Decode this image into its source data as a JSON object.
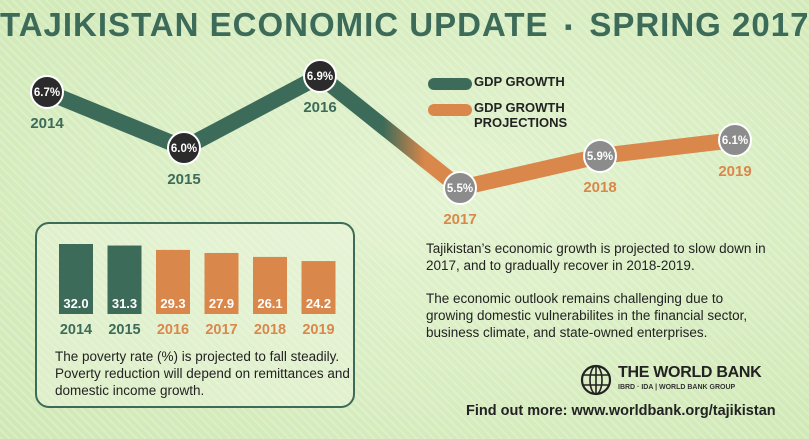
{
  "header": {
    "title_left": "TAJIKISTAN ECONOMIC UPDATE",
    "separator": "▪",
    "title_right": "SPRING 2017"
  },
  "colors": {
    "green": "#3d6b59",
    "orange": "#d9874a",
    "dark_marker": "#2b2b2b",
    "gray_marker": "#8c8c8c"
  },
  "legend": [
    {
      "label": "GDP GROWTH",
      "color": "#3d6b59"
    },
    {
      "label": "GDP GROWTH PROJECTIONS",
      "color": "#d9874a"
    }
  ],
  "chart_data": [
    {
      "type": "line",
      "x": [
        "2014",
        "2015",
        "2016",
        "2017",
        "2018",
        "2019"
      ],
      "series": [
        {
          "name": "GDP GROWTH",
          "values": [
            6.7,
            6.0,
            6.9,
            null,
            null,
            null
          ]
        },
        {
          "name": "GDP GROWTH PROJECTIONS",
          "values": [
            null,
            null,
            6.9,
            5.5,
            5.9,
            6.1
          ]
        }
      ],
      "data_labels": [
        "6.7%",
        "6.0%",
        "6.9%",
        "5.5%",
        "5.9%",
        "6.1%"
      ],
      "legend": "top-right",
      "grid": false
    },
    {
      "type": "bar",
      "categories": [
        "2014",
        "2015",
        "2016",
        "2017",
        "2018",
        "2019"
      ],
      "values": [
        32.0,
        31.3,
        29.3,
        27.9,
        26.1,
        24.2
      ],
      "data_labels": [
        "32.0",
        "31.3",
        "29.3",
        "27.9",
        "26.1",
        "24.2"
      ],
      "projected": [
        false,
        false,
        true,
        true,
        true,
        true
      ],
      "grid": false
    }
  ],
  "poverty": {
    "caption": "The poverty rate (%) is projected to fall steadily. Poverty reduction will depend on remittances and domestic income growth."
  },
  "paragraphs": {
    "p1": "Tajikistan’s economic growth is projected to slow down in 2017, and to gradually recover in 2018-2019.",
    "p2": "The economic outlook remains challenging due to growing domestic vulnerabilites in the financial sector, business climate, and state-owned enterprises."
  },
  "logo": {
    "name": "THE WORLD BANK",
    "sub": "IBRD · IDA | WORLD BANK GROUP"
  },
  "footer": {
    "find_out": "Find out more: www.worldbank.org/tajikistan"
  }
}
